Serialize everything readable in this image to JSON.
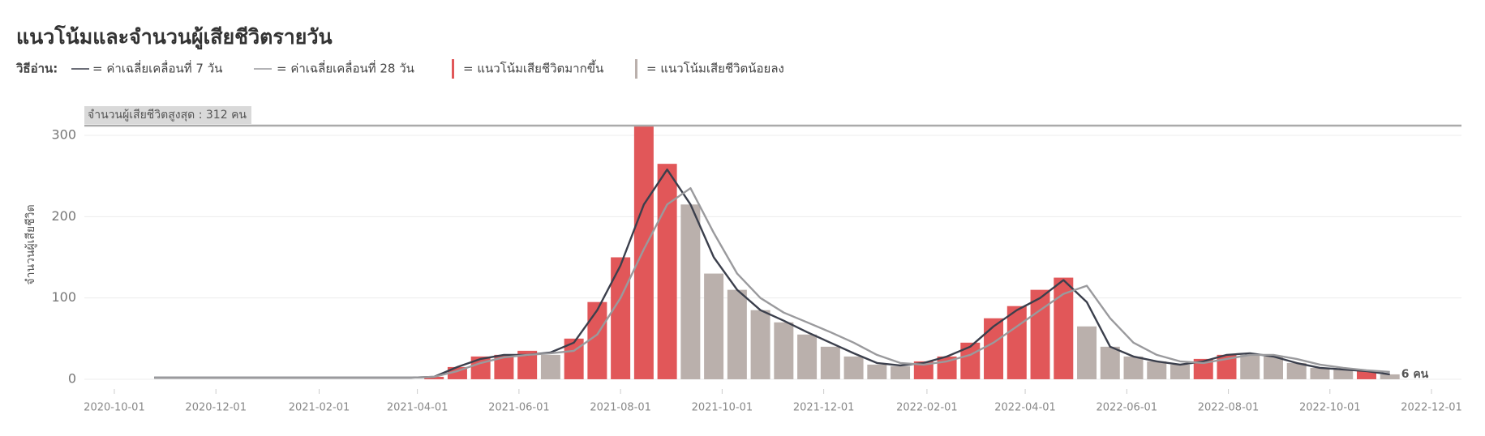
{
  "chart_data": {
    "type": "bar",
    "title": "แนวโน้มและจำนวนผู้เสียชีวิตรายวัน",
    "legend_title": "วิธีอ่าน:",
    "y_label": "จำนวนผู้เสียชีวิต",
    "max_line": {
      "value": 312,
      "label": "จำนวนผู้เสียชีวิตสูงสุด : 312 คน"
    },
    "end_label": {
      "value": 6,
      "label": "6 คน"
    },
    "x": [
      "2020-10-25",
      "2020-11-08",
      "2020-11-22",
      "2020-12-06",
      "2020-12-20",
      "2021-01-03",
      "2021-01-17",
      "2021-01-31",
      "2021-02-14",
      "2021-02-28",
      "2021-03-14",
      "2021-03-28",
      "2021-04-11",
      "2021-04-25",
      "2021-05-09",
      "2021-05-23",
      "2021-06-06",
      "2021-06-20",
      "2021-07-04",
      "2021-07-18",
      "2021-08-01",
      "2021-08-15",
      "2021-08-29",
      "2021-09-12",
      "2021-09-26",
      "2021-10-10",
      "2021-10-24",
      "2021-11-07",
      "2021-11-21",
      "2021-12-05",
      "2021-12-19",
      "2022-01-02",
      "2022-01-16",
      "2022-01-30",
      "2022-02-13",
      "2022-02-27",
      "2022-03-13",
      "2022-03-27",
      "2022-04-10",
      "2022-04-24",
      "2022-05-08",
      "2022-05-22",
      "2022-06-05",
      "2022-06-19",
      "2022-07-03",
      "2022-07-17",
      "2022-07-31",
      "2022-08-14",
      "2022-08-28",
      "2022-09-11",
      "2022-09-25",
      "2022-10-09",
      "2022-10-23",
      "2022-11-06"
    ],
    "series": [
      {
        "name": "= ค่าเฉลี่ยเคลื่อนที่ 7 วัน",
        "type": "line",
        "color": "#3b3f4c",
        "values": [
          2,
          2,
          2,
          2,
          2,
          2,
          2,
          2,
          2,
          2,
          2,
          2,
          3,
          15,
          25,
          30,
          30,
          33,
          45,
          85,
          140,
          215,
          258,
          215,
          150,
          110,
          85,
          72,
          58,
          45,
          32,
          20,
          17,
          20,
          28,
          40,
          65,
          85,
          100,
          122,
          95,
          40,
          28,
          22,
          18,
          22,
          30,
          32,
          28,
          20,
          14,
          12,
          10,
          6
        ]
      },
      {
        "name": "= ค่าเฉลี่ยเคลื่อนที่ 28 วัน",
        "type": "line",
        "color": "#9a9a9d",
        "values": [
          2,
          2,
          2,
          2,
          2,
          2,
          2,
          2,
          2,
          2,
          2,
          2,
          3,
          10,
          20,
          27,
          30,
          32,
          35,
          55,
          100,
          160,
          215,
          235,
          180,
          130,
          100,
          82,
          70,
          58,
          45,
          30,
          20,
          18,
          22,
          30,
          45,
          65,
          85,
          105,
          115,
          75,
          45,
          30,
          22,
          20,
          25,
          30,
          30,
          25,
          18,
          14,
          11,
          9
        ]
      },
      {
        "name": "= แนวโน้มเสียชีวิตมากขึ้น",
        "type": "bar",
        "color": "#e15759",
        "values": [
          null,
          null,
          null,
          null,
          null,
          null,
          null,
          null,
          null,
          null,
          null,
          null,
          3,
          15,
          28,
          30,
          35,
          null,
          50,
          95,
          150,
          312,
          265,
          null,
          null,
          null,
          null,
          null,
          null,
          null,
          null,
          null,
          null,
          22,
          28,
          45,
          75,
          90,
          110,
          125,
          null,
          null,
          null,
          null,
          null,
          25,
          30,
          null,
          null,
          null,
          null,
          null,
          10,
          null
        ]
      },
      {
        "name": "= แนวโน้มเสียชีวิตน้อยลง",
        "type": "bar",
        "color": "#bab0ac",
        "values": [
          null,
          null,
          null,
          null,
          null,
          null,
          null,
          null,
          null,
          null,
          null,
          null,
          null,
          null,
          null,
          null,
          null,
          30,
          null,
          null,
          null,
          null,
          null,
          215,
          130,
          110,
          85,
          70,
          55,
          40,
          28,
          18,
          16,
          null,
          null,
          null,
          null,
          null,
          null,
          null,
          65,
          40,
          28,
          22,
          18,
          null,
          null,
          30,
          28,
          20,
          14,
          12,
          null,
          6
        ]
      }
    ],
    "xlim": [
      "2020-09-13",
      "2022-12-19"
    ],
    "xticks": [
      "2020-10-01",
      "2020-12-01",
      "2021-02-01",
      "2021-04-01",
      "2021-06-01",
      "2021-08-01",
      "2021-10-01",
      "2021-12-01",
      "2022-02-01",
      "2022-04-01",
      "2022-06-01",
      "2022-08-01",
      "2022-10-01",
      "2022-12-01"
    ],
    "ylim": [
      -12,
      315
    ],
    "yticks": [
      0,
      100,
      200,
      300
    ],
    "grid": true
  }
}
